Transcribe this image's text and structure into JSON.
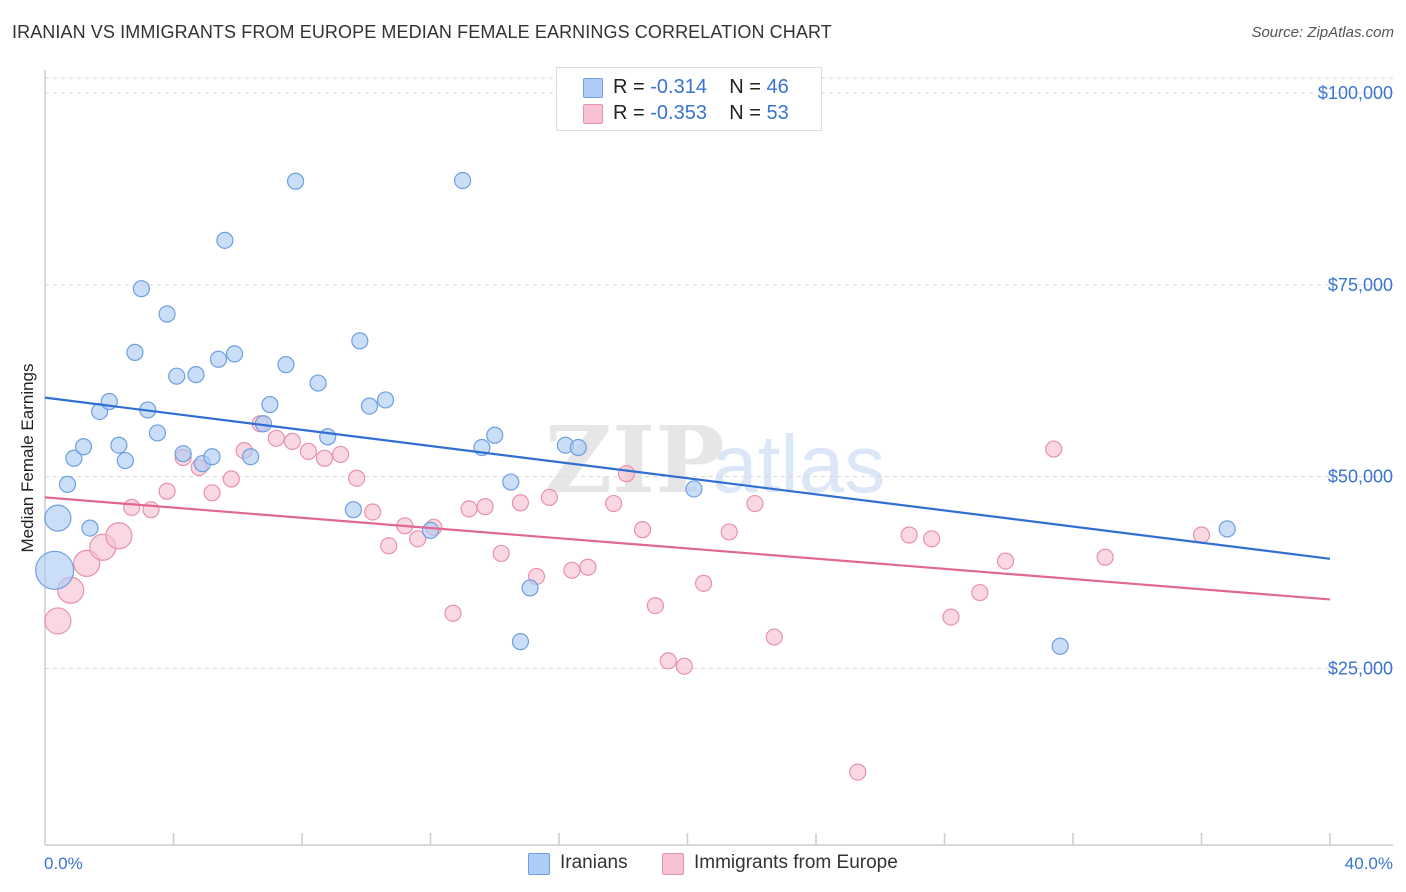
{
  "title": "IRANIAN VS IMMIGRANTS FROM EUROPE MEDIAN FEMALE EARNINGS CORRELATION CHART",
  "source": "Source: ZipAtlas.com",
  "watermark": {
    "zip": "ZIP",
    "atlas": "atlas"
  },
  "colors": {
    "blue_fill": "#aeccf5",
    "blue_stroke": "#6e9fe0",
    "blue_line": "#2f6fd1",
    "pink_fill": "#f7c3d3",
    "pink_stroke": "#e891ad",
    "pink_line": "#e06896",
    "axis_label": "#3a74d1",
    "grid": "#d8d8d8"
  },
  "legend": {
    "series1": {
      "r_label": "R =",
      "r_value": "-0.314",
      "n_label": "N =",
      "n_value": "46"
    },
    "series2": {
      "r_label": "R =",
      "r_value": "-0.353",
      "n_label": "N =",
      "n_value": "53"
    }
  },
  "chart_data": {
    "type": "scatter",
    "title": "IRANIAN VS IMMIGRANTS FROM EUROPE MEDIAN FEMALE EARNINGS CORRELATION CHART",
    "xlabel": "",
    "ylabel": "Median Female Earnings",
    "x_tick_labels": [
      "0.0%",
      "40.0%"
    ],
    "y_tick_labels": [
      "$25,000",
      "$50,000",
      "$75,000",
      "$100,000"
    ],
    "y_ticks": [
      25000,
      50000,
      75000,
      100000
    ],
    "xlim": [
      0,
      40
    ],
    "ylim": [
      2000,
      103000
    ],
    "grid": true,
    "legend_position": "bottom",
    "series": [
      {
        "name": "Iranians",
        "color": "#aeccf5",
        "trend": {
          "x": [
            0,
            40
          ],
          "y": [
            60300,
            39300
          ]
        },
        "points": [
          {
            "x": 0.3,
            "y": 37800,
            "s": 3
          },
          {
            "x": 0.4,
            "y": 44600,
            "s": 2
          },
          {
            "x": 0.7,
            "y": 49000,
            "s": 1
          },
          {
            "x": 0.9,
            "y": 52400,
            "s": 1
          },
          {
            "x": 1.2,
            "y": 53900,
            "s": 1
          },
          {
            "x": 1.4,
            "y": 43300,
            "s": 1
          },
          {
            "x": 1.7,
            "y": 58500,
            "s": 1
          },
          {
            "x": 2.0,
            "y": 59800,
            "s": 1
          },
          {
            "x": 2.3,
            "y": 54100,
            "s": 1
          },
          {
            "x": 2.5,
            "y": 52100,
            "s": 1
          },
          {
            "x": 2.8,
            "y": 66200,
            "s": 1
          },
          {
            "x": 3.0,
            "y": 74500,
            "s": 1
          },
          {
            "x": 3.2,
            "y": 58700,
            "s": 1
          },
          {
            "x": 3.5,
            "y": 55700,
            "s": 1
          },
          {
            "x": 3.8,
            "y": 71200,
            "s": 1
          },
          {
            "x": 4.1,
            "y": 63100,
            "s": 1
          },
          {
            "x": 4.3,
            "y": 53000,
            "s": 1
          },
          {
            "x": 4.7,
            "y": 63300,
            "s": 1
          },
          {
            "x": 4.9,
            "y": 51700,
            "s": 1
          },
          {
            "x": 5.2,
            "y": 52600,
            "s": 1
          },
          {
            "x": 5.4,
            "y": 65300,
            "s": 1
          },
          {
            "x": 5.6,
            "y": 80800,
            "s": 1
          },
          {
            "x": 5.9,
            "y": 66000,
            "s": 1
          },
          {
            "x": 6.4,
            "y": 52600,
            "s": 1
          },
          {
            "x": 6.8,
            "y": 56900,
            "s": 1
          },
          {
            "x": 7.0,
            "y": 59400,
            "s": 1
          },
          {
            "x": 7.5,
            "y": 64600,
            "s": 1
          },
          {
            "x": 7.8,
            "y": 88500,
            "s": 1
          },
          {
            "x": 8.5,
            "y": 62200,
            "s": 1
          },
          {
            "x": 8.8,
            "y": 55200,
            "s": 1
          },
          {
            "x": 9.6,
            "y": 45700,
            "s": 1
          },
          {
            "x": 9.8,
            "y": 67700,
            "s": 1
          },
          {
            "x": 10.1,
            "y": 59200,
            "s": 1
          },
          {
            "x": 10.6,
            "y": 60000,
            "s": 1
          },
          {
            "x": 12.0,
            "y": 43000,
            "s": 1
          },
          {
            "x": 13.0,
            "y": 88600,
            "s": 1
          },
          {
            "x": 13.6,
            "y": 53800,
            "s": 1
          },
          {
            "x": 14.0,
            "y": 55400,
            "s": 1
          },
          {
            "x": 14.5,
            "y": 49300,
            "s": 1
          },
          {
            "x": 15.1,
            "y": 35500,
            "s": 1
          },
          {
            "x": 14.8,
            "y": 28500,
            "s": 1
          },
          {
            "x": 16.2,
            "y": 54100,
            "s": 1
          },
          {
            "x": 16.6,
            "y": 53800,
            "s": 1
          },
          {
            "x": 20.2,
            "y": 48400,
            "s": 1
          },
          {
            "x": 31.6,
            "y": 27900,
            "s": 1
          },
          {
            "x": 36.8,
            "y": 43200,
            "s": 1
          }
        ]
      },
      {
        "name": "Immigrants from Europe",
        "color": "#f7c3d3",
        "trend": {
          "x": [
            0,
            40
          ],
          "y": [
            47300,
            34000
          ]
        },
        "points": [
          {
            "x": 0.4,
            "y": 31200,
            "s": 2
          },
          {
            "x": 0.8,
            "y": 35200,
            "s": 2
          },
          {
            "x": 1.3,
            "y": 38700,
            "s": 2
          },
          {
            "x": 1.8,
            "y": 40800,
            "s": 2
          },
          {
            "x": 2.3,
            "y": 42300,
            "s": 2
          },
          {
            "x": 2.7,
            "y": 46000,
            "s": 1
          },
          {
            "x": 3.3,
            "y": 45700,
            "s": 1
          },
          {
            "x": 3.8,
            "y": 48100,
            "s": 1
          },
          {
            "x": 4.3,
            "y": 52500,
            "s": 1
          },
          {
            "x": 4.8,
            "y": 51200,
            "s": 1
          },
          {
            "x": 5.2,
            "y": 47900,
            "s": 1
          },
          {
            "x": 5.8,
            "y": 49700,
            "s": 1
          },
          {
            "x": 6.2,
            "y": 53400,
            "s": 1
          },
          {
            "x": 6.7,
            "y": 56900,
            "s": 1
          },
          {
            "x": 7.2,
            "y": 55000,
            "s": 1
          },
          {
            "x": 7.7,
            "y": 54600,
            "s": 1
          },
          {
            "x": 8.2,
            "y": 53300,
            "s": 1
          },
          {
            "x": 8.7,
            "y": 52400,
            "s": 1
          },
          {
            "x": 9.2,
            "y": 52900,
            "s": 1
          },
          {
            "x": 9.7,
            "y": 49800,
            "s": 1
          },
          {
            "x": 10.2,
            "y": 45400,
            "s": 1
          },
          {
            "x": 10.7,
            "y": 41000,
            "s": 1
          },
          {
            "x": 11.2,
            "y": 43600,
            "s": 1
          },
          {
            "x": 11.6,
            "y": 41900,
            "s": 1
          },
          {
            "x": 12.1,
            "y": 43400,
            "s": 1
          },
          {
            "x": 12.7,
            "y": 32200,
            "s": 1
          },
          {
            "x": 13.2,
            "y": 45800,
            "s": 1
          },
          {
            "x": 13.7,
            "y": 46100,
            "s": 1
          },
          {
            "x": 14.2,
            "y": 40000,
            "s": 1
          },
          {
            "x": 14.8,
            "y": 46600,
            "s": 1
          },
          {
            "x": 15.3,
            "y": 37000,
            "s": 1
          },
          {
            "x": 15.7,
            "y": 47300,
            "s": 1
          },
          {
            "x": 16.4,
            "y": 37800,
            "s": 1
          },
          {
            "x": 16.9,
            "y": 38200,
            "s": 1
          },
          {
            "x": 17.7,
            "y": 46500,
            "s": 1
          },
          {
            "x": 18.1,
            "y": 50400,
            "s": 1
          },
          {
            "x": 18.6,
            "y": 43100,
            "s": 1
          },
          {
            "x": 19.0,
            "y": 33200,
            "s": 1
          },
          {
            "x": 19.4,
            "y": 26000,
            "s": 1
          },
          {
            "x": 19.9,
            "y": 25300,
            "s": 1
          },
          {
            "x": 20.5,
            "y": 36100,
            "s": 1
          },
          {
            "x": 21.3,
            "y": 42800,
            "s": 1
          },
          {
            "x": 22.1,
            "y": 46500,
            "s": 1
          },
          {
            "x": 22.7,
            "y": 29100,
            "s": 1
          },
          {
            "x": 25.3,
            "y": 11500,
            "s": 1
          },
          {
            "x": 26.9,
            "y": 42400,
            "s": 1
          },
          {
            "x": 27.6,
            "y": 41900,
            "s": 1
          },
          {
            "x": 28.2,
            "y": 31700,
            "s": 1
          },
          {
            "x": 29.1,
            "y": 34900,
            "s": 1
          },
          {
            "x": 29.9,
            "y": 39000,
            "s": 1
          },
          {
            "x": 31.4,
            "y": 53600,
            "s": 1
          },
          {
            "x": 33.0,
            "y": 39500,
            "s": 1
          },
          {
            "x": 36.0,
            "y": 42400,
            "s": 1
          }
        ]
      }
    ]
  }
}
